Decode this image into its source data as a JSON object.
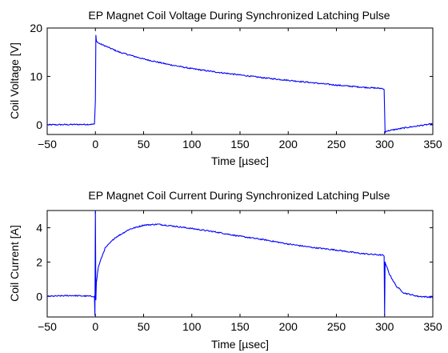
{
  "chart_data": [
    {
      "type": "line",
      "title": "EP Magnet Coil Voltage During Synchronized Latching Pulse",
      "xlabel": "Time [µsec]",
      "ylabel": "Coil Voltage [V]",
      "xlim": [
        -50,
        350
      ],
      "ylim": [
        -2,
        20
      ],
      "xticks": [
        -50,
        0,
        50,
        100,
        150,
        200,
        250,
        300,
        350
      ],
      "xtick_labels": [
        "−50",
        "0",
        "50",
        "100",
        "150",
        "200",
        "250",
        "300",
        "350"
      ],
      "yticks": [
        0,
        10,
        20
      ],
      "ytick_labels": [
        "0",
        "10",
        "20"
      ],
      "grid": false,
      "line_color": "#0000ff",
      "series": [
        {
          "x": [
            -50,
            -25,
            -1,
            0,
            0.5,
            1,
            3,
            10,
            25,
            50,
            75,
            100,
            125,
            150,
            175,
            200,
            225,
            250,
            275,
            298,
            299.5,
            300.5,
            302,
            310,
            325,
            350
          ],
          "y": [
            0.0,
            0.05,
            0.1,
            5.0,
            18.5,
            17.4,
            16.9,
            16.3,
            15.0,
            13.6,
            12.5,
            11.6,
            10.9,
            10.3,
            9.7,
            9.2,
            8.7,
            8.2,
            7.8,
            7.5,
            7.3,
            -1.6,
            -1.3,
            -1.0,
            -0.5,
            0.2
          ]
        }
      ]
    },
    {
      "type": "line",
      "title": "EP Magnet Coil Current During Synchronized Latching Pulse",
      "xlabel": "Time [µsec]",
      "ylabel": "Coil Current [A]",
      "xlim": [
        -50,
        350
      ],
      "ylim": [
        -1.2,
        5
      ],
      "xticks": [
        -50,
        0,
        50,
        100,
        150,
        200,
        250,
        300,
        350
      ],
      "xtick_labels": [
        "−50",
        "0",
        "50",
        "100",
        "150",
        "200",
        "250",
        "300",
        "350"
      ],
      "yticks": [
        0,
        2,
        4
      ],
      "ytick_labels": [
        "0",
        "2",
        "4"
      ],
      "grid": false,
      "line_color": "#0000ff",
      "series": [
        {
          "x": [
            -50,
            -25,
            -1,
            -0.5,
            0,
            0.5,
            1,
            3,
            6,
            10,
            20,
            35,
            50,
            65,
            80,
            100,
            125,
            150,
            175,
            200,
            225,
            250,
            275,
            298,
            299.5,
            300,
            300.5,
            301,
            305,
            312,
            320,
            335,
            350
          ],
          "y": [
            0.0,
            0.05,
            0.0,
            -1.1,
            5.0,
            -0.2,
            0.8,
            1.7,
            2.2,
            2.8,
            3.4,
            3.9,
            4.15,
            4.2,
            4.1,
            3.95,
            3.75,
            3.5,
            3.3,
            3.05,
            2.85,
            2.7,
            2.5,
            2.4,
            2.35,
            -1.1,
            2.0,
            1.9,
            1.3,
            0.6,
            0.2,
            0.0,
            -0.05
          ]
        }
      ]
    }
  ]
}
